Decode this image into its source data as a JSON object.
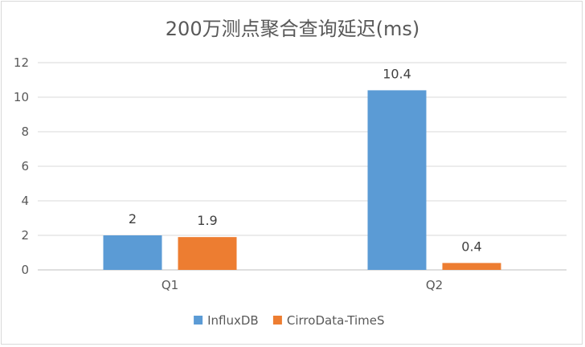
{
  "chart_data": {
    "type": "bar",
    "title": "200万测点聚合查询延迟(ms)",
    "categories": [
      "Q1",
      "Q2"
    ],
    "series": [
      {
        "name": "InfluxDB",
        "values": [
          2,
          10.4
        ],
        "labels": [
          "2",
          "10.4"
        ],
        "color": "#5b9bd5"
      },
      {
        "name": "CirroData-TimeS",
        "values": [
          1.9,
          0.4
        ],
        "labels": [
          "1.9",
          "0.4"
        ],
        "color": "#ed7d31"
      }
    ],
    "ylim": [
      0,
      12
    ],
    "yticks": [
      0,
      2,
      4,
      6,
      8,
      10,
      12
    ],
    "ytick_labels": [
      "0",
      "2",
      "4",
      "6",
      "8",
      "10",
      "12"
    ],
    "grid": true,
    "legend": "bottom"
  }
}
